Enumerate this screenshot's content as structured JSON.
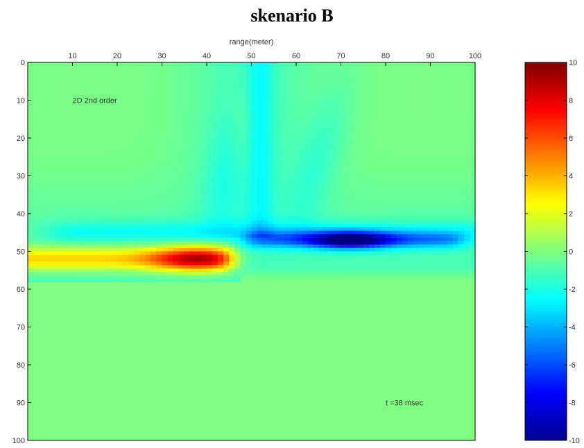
{
  "title": "skenario B",
  "chart_data": {
    "type": "heatmap",
    "title": "skenario B",
    "xlabel": "range(meter)",
    "ylabel": "",
    "xlim": [
      0,
      100
    ],
    "ylim": [
      0,
      100
    ],
    "x_ticks": [
      10,
      20,
      30,
      40,
      50,
      60,
      70,
      80,
      90,
      100
    ],
    "y_ticks": [
      0,
      10,
      20,
      30,
      40,
      50,
      60,
      70,
      80,
      90,
      100
    ],
    "y_axis_reversed": true,
    "x_axis_position": "top",
    "colormap": "jet",
    "colorbar": {
      "min": -10,
      "max": 10,
      "ticks": [
        10,
        8,
        6,
        4,
        2,
        0,
        -2,
        -4,
        -6,
        -8,
        -10
      ]
    },
    "background_value": 0,
    "features": [
      {
        "label": "positive lobe",
        "x_range": [
          0,
          48
        ],
        "y_center": 52,
        "peak_value": 9.5
      },
      {
        "label": "negative lobe",
        "x_range": [
          48,
          100
        ],
        "y_center": 47,
        "peak_value": -10
      }
    ],
    "annotations": [
      {
        "text": "2D 2nd order",
        "x": 10,
        "y": 10
      },
      {
        "text": "t =38 msec",
        "x": 80,
        "y": 90
      }
    ]
  }
}
